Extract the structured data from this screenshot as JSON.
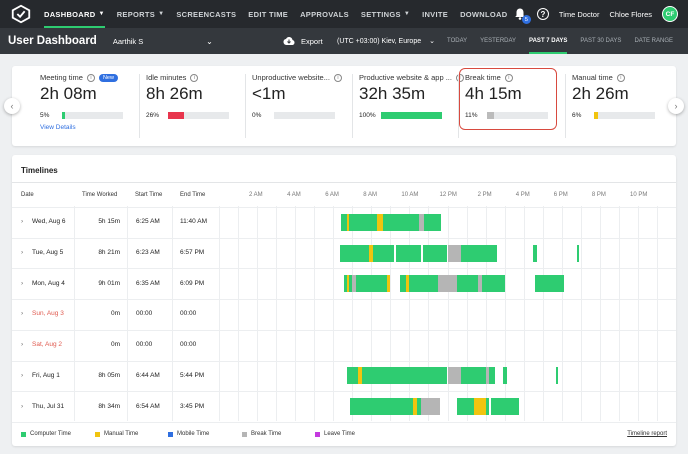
{
  "nav": {
    "items": [
      {
        "label": "DASHBOARD",
        "active": true,
        "caret": true
      },
      {
        "label": "REPORTS",
        "caret": true
      },
      {
        "label": "SCREENCASTS"
      },
      {
        "label": "EDIT TIME"
      },
      {
        "label": "APPROVALS"
      },
      {
        "label": "SETTINGS",
        "caret": true
      },
      {
        "label": "INVITE"
      },
      {
        "label": "DOWNLOAD"
      }
    ],
    "notifications": "5",
    "company": "Time Doctor",
    "user_name": "Chloe Flores",
    "user_initials": "CF"
  },
  "subbar": {
    "title": "User Dashboard",
    "selected_user": "Aarthik S",
    "export_label": "Export",
    "timezone": "(UTC +03:00) Kiev, Europe",
    "ranges": [
      "TODAY",
      "YESTERDAY",
      "PAST 7 DAYS",
      "PAST 30 DAYS",
      "DATE RANGE"
    ],
    "active_range": "PAST 7 DAYS"
  },
  "stats": [
    {
      "label": "Meeting time",
      "value": "2h 08m",
      "pct": "5%",
      "fill": 0.05,
      "color": "#2ecc71",
      "new": "New",
      "link": "View Details"
    },
    {
      "label": "Idle minutes",
      "value": "8h 26m",
      "pct": "26%",
      "fill": 0.26,
      "color": "#e8354d"
    },
    {
      "label": "Unproductive website...",
      "value": "<1m",
      "pct": "0%",
      "fill": 0,
      "color": "#e8354d"
    },
    {
      "label": "Productive website & app ...",
      "value": "32h 35m",
      "pct": "100%",
      "fill": 1,
      "color": "#2ecc71"
    },
    {
      "label": "Break time",
      "value": "4h 15m",
      "pct": "11%",
      "fill": 0.11,
      "color": "#bbbbbb"
    },
    {
      "label": "Manual time",
      "value": "2h 26m",
      "pct": "6%",
      "fill": 0.06,
      "color": "#f1c40f"
    }
  ],
  "timeline": {
    "title": "Timelines",
    "headers": {
      "date": "Date",
      "worked": "Time Worked",
      "start": "Start Time",
      "end": "End Time"
    },
    "hours": [
      "2 AM",
      "4 AM",
      "6 AM",
      "8 AM",
      "10 AM",
      "12 PM",
      "2 PM",
      "4 PM",
      "6 PM",
      "8 PM",
      "10 PM"
    ],
    "rows": [
      {
        "date": "Wed, Aug 6",
        "worked": "5h 15m",
        "start": "6:25 AM",
        "end": "11:40 AM",
        "weekend": false,
        "segments": [
          [
            "computer",
            6.4,
            6.7
          ],
          [
            "yellow",
            6.7,
            6.85
          ],
          [
            "computer",
            6.85,
            8.3
          ],
          [
            "yellow",
            8.3,
            8.6
          ],
          [
            "computer",
            8.6,
            10.5
          ],
          [
            "break",
            10.5,
            10.75
          ],
          [
            "computer",
            10.75,
            11.65
          ]
        ]
      },
      {
        "date": "Tue, Aug 5",
        "worked": "8h 21m",
        "start": "6:23 AM",
        "end": "6:57 PM",
        "weekend": false,
        "segments": [
          [
            "computer",
            6.38,
            7.9
          ],
          [
            "yellow",
            7.9,
            8.1
          ],
          [
            "computer",
            8.1,
            9.2
          ],
          [
            "computer",
            9.3,
            10.6
          ],
          [
            "computer",
            10.7,
            12.0
          ],
          [
            "break",
            12.0,
            12.7
          ],
          [
            "computer",
            12.7,
            14.6
          ],
          [
            "computer",
            16.5,
            16.7
          ],
          [
            "computer",
            18.8,
            18.9
          ]
        ]
      },
      {
        "date": "Mon, Aug 4",
        "worked": "9h 01m",
        "start": "6:35 AM",
        "end": "6:09 PM",
        "weekend": false,
        "segments": [
          [
            "computer",
            6.55,
            6.7
          ],
          [
            "yellow",
            6.7,
            6.85
          ],
          [
            "computer",
            6.85,
            7.0
          ],
          [
            "break",
            7.0,
            7.2
          ],
          [
            "computer",
            7.2,
            8.8
          ],
          [
            "yellow",
            8.8,
            9.0
          ],
          [
            "computer",
            9.5,
            9.8
          ],
          [
            "yellow",
            9.8,
            10.0
          ],
          [
            "computer",
            10.0,
            11.5
          ],
          [
            "break",
            11.5,
            12.5
          ],
          [
            "computer",
            12.5,
            13.6
          ],
          [
            "break",
            13.6,
            13.8
          ],
          [
            "computer",
            13.8,
            15.0
          ],
          [
            "computer",
            16.6,
            18.1
          ]
        ]
      },
      {
        "date": "Sun, Aug 3",
        "worked": "0m",
        "start": "00:00",
        "end": "00:00",
        "weekend": true,
        "segments": []
      },
      {
        "date": "Sat, Aug 2",
        "worked": "0m",
        "start": "00:00",
        "end": "00:00",
        "weekend": true,
        "segments": []
      },
      {
        "date": "Fri, Aug 1",
        "worked": "8h 05m",
        "start": "6:44 AM",
        "end": "5:44 PM",
        "weekend": false,
        "segments": [
          [
            "computer",
            6.73,
            7.3
          ],
          [
            "yellow",
            7.3,
            7.5
          ],
          [
            "computer",
            7.5,
            12.0
          ],
          [
            "break",
            12.0,
            12.7
          ],
          [
            "computer",
            12.7,
            14.0
          ],
          [
            "break",
            14.0,
            14.2
          ],
          [
            "computer",
            14.2,
            14.5
          ],
          [
            "computer",
            14.9,
            15.1
          ],
          [
            "computer",
            17.7,
            17.75
          ]
        ]
      },
      {
        "date": "Thu, Jul 31",
        "worked": "8h 34m",
        "start": "6:54 AM",
        "end": "3:45 PM",
        "weekend": false,
        "segments": [
          [
            "computer",
            6.9,
            10.2
          ],
          [
            "yellow",
            10.2,
            10.4
          ],
          [
            "computer",
            10.4,
            10.6
          ],
          [
            "break",
            10.6,
            11.6
          ],
          [
            "computer",
            12.5,
            13.4
          ],
          [
            "yellow",
            13.4,
            14.0
          ],
          [
            "computer",
            14.0,
            14.2
          ],
          [
            "computer",
            14.3,
            15.75
          ]
        ]
      }
    ],
    "legend": [
      {
        "label": "Computer Time",
        "color": "#2ecc71"
      },
      {
        "label": "Manual Time",
        "color": "#f1c40f"
      },
      {
        "label": "Mobile Time",
        "color": "#2f6fe0"
      },
      {
        "label": "Break Time",
        "color": "#b5b5b5"
      },
      {
        "label": "Leave Time",
        "color": "#c43adf"
      }
    ],
    "report_link": "Timeline report"
  },
  "colors": {
    "computer": "#2ecc71",
    "yellow": "#f1c40f",
    "break": "#b5b5b5",
    "accent": "#2ecc71",
    "highlight": "#d84a3f"
  }
}
